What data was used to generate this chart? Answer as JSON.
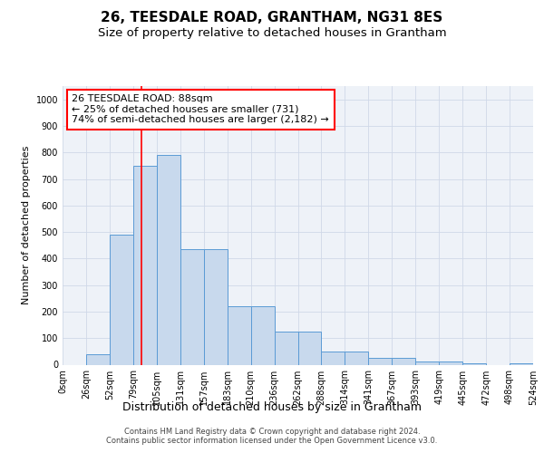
{
  "title": "26, TEESDALE ROAD, GRANTHAM, NG31 8ES",
  "subtitle": "Size of property relative to detached houses in Grantham",
  "xlabel": "Distribution of detached houses by size in Grantham",
  "ylabel": "Number of detached properties",
  "bar_color": "#c8d9ed",
  "bar_edge_color": "#5b9bd5",
  "bin_labels": [
    "0sqm",
    "26sqm",
    "52sqm",
    "79sqm",
    "105sqm",
    "131sqm",
    "157sqm",
    "183sqm",
    "210sqm",
    "236sqm",
    "262sqm",
    "288sqm",
    "314sqm",
    "341sqm",
    "367sqm",
    "393sqm",
    "419sqm",
    "445sqm",
    "472sqm",
    "498sqm",
    "524sqm"
  ],
  "bar_heights": [
    0,
    40,
    490,
    750,
    790,
    435,
    435,
    220,
    220,
    125,
    125,
    50,
    50,
    25,
    25,
    12,
    12,
    5,
    0,
    5
  ],
  "ylim": [
    0,
    1050
  ],
  "yticks": [
    0,
    100,
    200,
    300,
    400,
    500,
    600,
    700,
    800,
    900,
    1000
  ],
  "red_line_x": 3.35,
  "annotation_text": "26 TEESDALE ROAD: 88sqm\n← 25% of detached houses are smaller (731)\n74% of semi-detached houses are larger (2,182) →",
  "annotation_box_color": "white",
  "annotation_border_color": "red",
  "grid_color": "#d0d8e8",
  "bg_color": "#eef2f8",
  "footer_text": "Contains HM Land Registry data © Crown copyright and database right 2024.\nContains public sector information licensed under the Open Government Licence v3.0.",
  "title_fontsize": 11,
  "subtitle_fontsize": 9.5,
  "xlabel_fontsize": 9,
  "ylabel_fontsize": 8,
  "tick_fontsize": 7,
  "annotation_fontsize": 8,
  "footer_fontsize": 6
}
